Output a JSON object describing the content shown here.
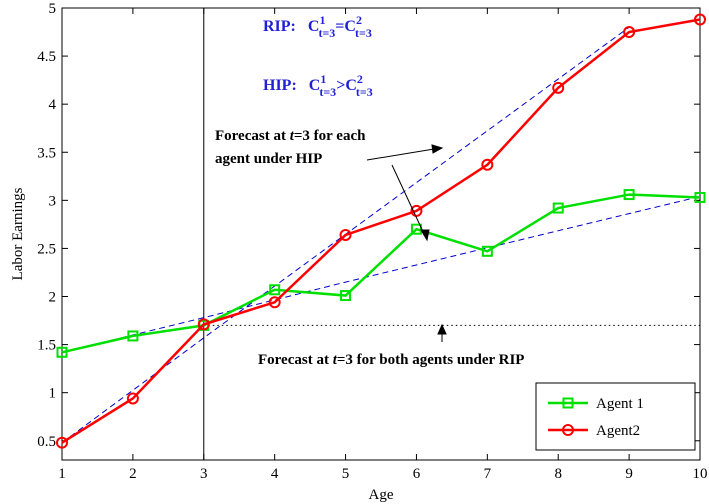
{
  "chart_data": {
    "type": "line",
    "xlabel": "Age",
    "ylabel": "Labor Earnings",
    "xlim": [
      1,
      10
    ],
    "ylim": [
      0.3,
      5
    ],
    "x_ticks": [
      "1",
      "2",
      "3",
      "4",
      "5",
      "6",
      "7",
      "8",
      "9",
      "10"
    ],
    "y_ticks": [
      "0.5",
      "1",
      "1.5",
      "2",
      "2.5",
      "3",
      "3.5",
      "4",
      "4.5",
      "5"
    ],
    "x": [
      1,
      2,
      3,
      4,
      5,
      6,
      7,
      8,
      9,
      10
    ],
    "series": [
      {
        "name": "Agent 1",
        "color": "#00e000",
        "marker": "square",
        "values": [
          1.42,
          1.59,
          1.7,
          2.07,
          2.01,
          2.7,
          2.47,
          2.92,
          3.06,
          3.03
        ]
      },
      {
        "name": "Agent2",
        "color": "#ff0000",
        "marker": "circle",
        "values": [
          0.48,
          0.94,
          1.71,
          1.94,
          2.64,
          2.89,
          3.37,
          4.17,
          4.75,
          4.88
        ]
      }
    ],
    "forecast_lines": [
      {
        "style": "dashed",
        "color": "#0000cc",
        "points": [
          [
            1,
            1.42
          ],
          [
            3,
            1.78
          ],
          [
            5,
            2.15
          ],
          [
            10,
            3.04
          ]
        ]
      },
      {
        "style": "dashed",
        "color": "#0000cc",
        "points": [
          [
            1,
            0.48
          ],
          [
            3,
            1.57
          ],
          [
            9,
            4.8
          ]
        ]
      },
      {
        "style": "dotted",
        "color": "#000000",
        "points": [
          [
            3,
            1.7
          ],
          [
            10,
            1.7
          ]
        ]
      }
    ],
    "vertical_line_x": 3,
    "legend": {
      "placement": "bottom-right",
      "entries": [
        "Agent 1",
        "Agent2"
      ]
    },
    "grid": false
  },
  "annotations": {
    "rip": {
      "prefix": "RIP:",
      "c": "C",
      "sup1": "1",
      "sub1": "t=3",
      "op": "=",
      "sup2": "2",
      "sub2": "t=3"
    },
    "hip": {
      "prefix": "HIP:",
      "c": "C",
      "sup1": "1",
      "sub1": "t=3",
      "op": ">",
      "sup2": "2",
      "sub2": "t=3"
    },
    "hip_forecast": {
      "line1_pre": "Forecast at ",
      "line1_var": "t",
      "line1_post": "=3 for each",
      "line2": "agent under HIP"
    },
    "rip_forecast": {
      "pre": "Forecast at ",
      "var": "t",
      "post": "=3 for both agents under RIP"
    }
  }
}
